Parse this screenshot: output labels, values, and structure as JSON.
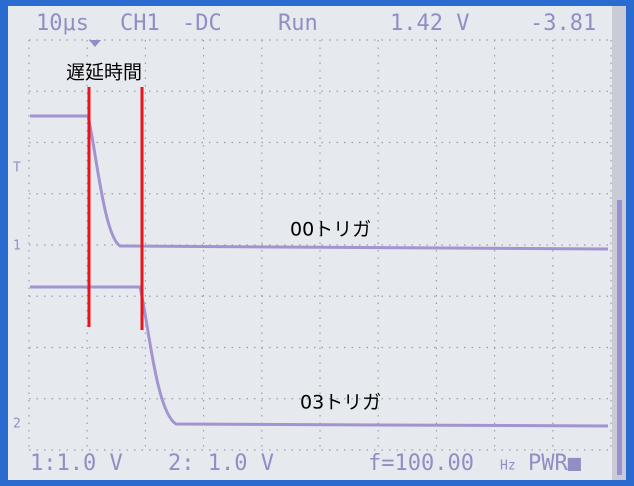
{
  "top_bar": {
    "timebase": "10μs",
    "channel": "CH1",
    "coupling": "-DC",
    "status": "Run",
    "voltage": "1.42 V",
    "value": "-3.81"
  },
  "markers": {
    "trigger": "T",
    "ch1": "1",
    "ch2": "2"
  },
  "bottom_bar": {
    "ch1_scale": "1:1.0 V",
    "ch2_scale": "2: 1.0 V",
    "frequency": "f=100.00",
    "frequency_unit": "Hz",
    "power": "PWR■"
  },
  "annotations": {
    "delay": "遅延時間",
    "trace_00": "00トリガ",
    "trace_03": "03トリガ"
  }
}
